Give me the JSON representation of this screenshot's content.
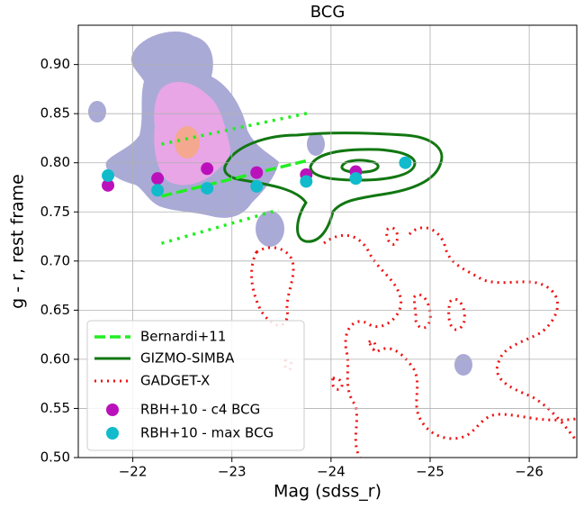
{
  "chart_data": {
    "type": "scatter",
    "title": "BCG",
    "x_label": "Mag (sdss_r)",
    "y_label": "g - r, rest frame",
    "xlim": [
      -21.45,
      -26.48
    ],
    "ylim": [
      0.5,
      0.94
    ],
    "xticks": [
      {
        "value": -22,
        "label": "−22"
      },
      {
        "value": -23,
        "label": "−23"
      },
      {
        "value": -24,
        "label": "−24"
      },
      {
        "value": -25,
        "label": "−25"
      },
      {
        "value": -26,
        "label": "−26"
      }
    ],
    "yticks": [
      {
        "value": 0.5,
        "label": "0.50"
      },
      0.55,
      {
        "value": 0.6,
        "label": "0.60"
      },
      0.65,
      {
        "value": 0.7,
        "label": "0.70"
      },
      0.75,
      {
        "value": 0.8,
        "label": "0.80"
      },
      0.85,
      {
        "value": 0.9,
        "label": "0.90"
      }
    ],
    "grid": true,
    "legend": "lower left",
    "lines": [
      {
        "name": "Bernardi+11",
        "color": "#22ee22",
        "x": [
          -22.29,
          -23.79
        ],
        "values": [
          0.766,
          0.803
        ],
        "upper": {
          "x": [
            -22.29,
            -23.79
          ],
          "values": [
            0.819,
            0.851
          ]
        },
        "lower": {
          "x": [
            -22.29,
            -23.47
          ],
          "values": [
            0.718,
            0.752
          ]
        }
      }
    ],
    "contours": [
      {
        "name": "GIZMO-SIMBA",
        "color": "#117711"
      },
      {
        "name": "GADGET-X",
        "color": "#ee1111"
      }
    ],
    "series": [
      {
        "name": "RBH+10 - c4 BCG",
        "color": "#bb11bb",
        "x": [
          -21.75,
          -22.25,
          -22.75,
          -23.25,
          -23.75,
          -24.25
        ],
        "values": [
          0.777,
          0.784,
          0.794,
          0.79,
          0.788,
          0.791
        ]
      },
      {
        "name": "RBH+10 - max BCG",
        "color": "#11bbcc",
        "x": [
          -21.75,
          -22.25,
          -22.75,
          -23.25,
          -23.75,
          -24.25,
          -24.75
        ],
        "values": [
          0.787,
          0.772,
          0.774,
          0.776,
          0.781,
          0.784,
          0.8
        ]
      }
    ]
  }
}
